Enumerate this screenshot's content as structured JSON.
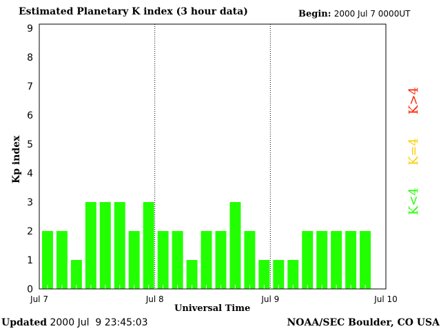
{
  "header": {
    "title": "Estimated Planetary K index (3 hour data)",
    "begin_label": "Begin:",
    "begin_value": "2000 Jul 7 0000UT"
  },
  "footer": {
    "updated_label": "Updated",
    "updated_value": "2000 Jul  9 23:45:03",
    "source": "NOAA/SEC Boulder, CO USA"
  },
  "legend": {
    "items": [
      {
        "label": "K<4",
        "color": "#22ff00"
      },
      {
        "label": "K=4",
        "color": "#ffcc00"
      },
      {
        "label": "K>4",
        "color": "#ff2200"
      }
    ]
  },
  "chart_data": {
    "type": "bar",
    "title": "Estimated Planetary K index (3 hour data)",
    "xlabel": "Universal Time",
    "ylabel": "Kp index",
    "ylim": [
      0,
      9
    ],
    "yticks": [
      "0",
      "1",
      "2",
      "3",
      "4",
      "5",
      "6",
      "7",
      "8",
      "9"
    ],
    "xticks": [
      "Jul 7",
      "Jul 8",
      "Jul 9",
      "Jul 10"
    ],
    "interval_hours": 3,
    "values": [
      2,
      2,
      1,
      3,
      3,
      3,
      2,
      3,
      2,
      2,
      1,
      2,
      2,
      3,
      2,
      1,
      1,
      1,
      2,
      2,
      2,
      2,
      2
    ],
    "bar_color": "#22ff00",
    "grid": "vertical dotted at day boundaries"
  }
}
